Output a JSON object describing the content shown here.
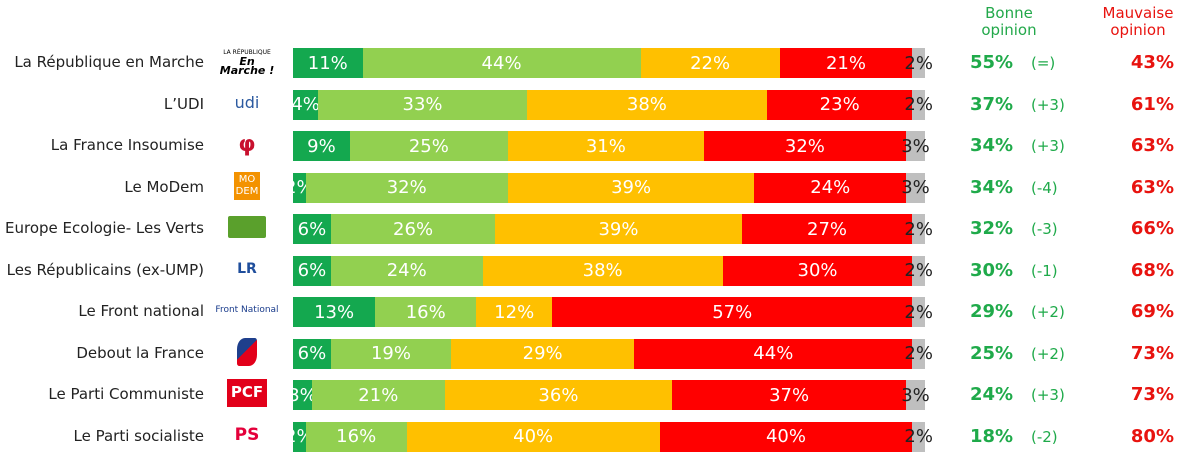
{
  "headers": {
    "good": "Bonne opinion",
    "bad": "Mauvaise opinion"
  },
  "colors": {
    "s0": "#14a84f",
    "s1": "#92d050",
    "s2": "#ffc000",
    "s3": "#ff0000",
    "s4": "#bfbfbf",
    "good": "#1faa4a",
    "bad": "#e8130f"
  },
  "chart_data": {
    "type": "bar",
    "orientation": "horizontal",
    "stacked": true,
    "categories": [
      "La République en Marche",
      "L’UDI",
      "La France Insoumise",
      "Le MoDem",
      "Europe Ecologie- Les Verts",
      "Les Républicains (ex-UMP)",
      "Le Front national",
      "Debout la France",
      "Le Parti Communiste",
      "Le Parti socialiste"
    ],
    "series": [
      {
        "values": [
          11,
          4,
          9,
          2,
          6,
          6,
          13,
          6,
          3,
          2
        ]
      },
      {
        "values": [
          44,
          33,
          25,
          32,
          26,
          24,
          16,
          19,
          21,
          16
        ]
      },
      {
        "values": [
          22,
          38,
          31,
          39,
          39,
          38,
          12,
          29,
          36,
          40
        ]
      },
      {
        "values": [
          21,
          23,
          32,
          24,
          27,
          30,
          57,
          44,
          37,
          40
        ]
      },
      {
        "values": [
          2,
          2,
          3,
          3,
          2,
          2,
          2,
          2,
          3,
          2
        ]
      }
    ],
    "bonne_opinion": [
      "55%",
      "37%",
      "34%",
      "34%",
      "32%",
      "30%",
      "29%",
      "25%",
      "24%",
      "18%"
    ],
    "bonne_opinion_change": [
      "(=)",
      "(+3)",
      "(+3)",
      "(-4)",
      "(-3)",
      "(-1)",
      "(+2)",
      "(+2)",
      "(+3)",
      "(-2)"
    ],
    "mauvaise_opinion": [
      "43%",
      "61%",
      "63%",
      "63%",
      "66%",
      "68%",
      "69%",
      "73%",
      "73%",
      "80%"
    ]
  },
  "logos": [
    {
      "icon": "lrem-logo",
      "text": "En Marche !",
      "small": "LA RÉPUBLIQUE"
    },
    {
      "icon": "udi-logo",
      "text": "udi"
    },
    {
      "icon": "lfi-logo",
      "text": "φ"
    },
    {
      "icon": "modem-logo",
      "text": "MO DEM"
    },
    {
      "icon": "eelv-logo"
    },
    {
      "icon": "lr-logo",
      "text": "LR"
    },
    {
      "icon": "fn-logo",
      "text": "Front National"
    },
    {
      "icon": "dlf-logo"
    },
    {
      "icon": "pcf-logo",
      "text": "PCF"
    },
    {
      "icon": "ps-logo",
      "text": "PS"
    }
  ]
}
